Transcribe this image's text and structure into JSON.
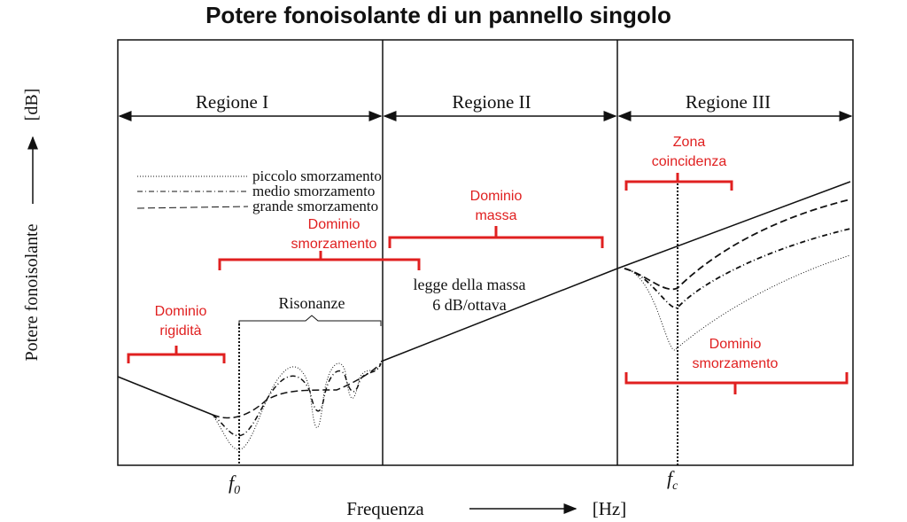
{
  "title": "Potere fonoisolante di un pannello singolo",
  "regions": [
    "Regione I",
    "Regione II",
    "Regione III"
  ],
  "legend": [
    "piccolo smorzamento",
    "medio smorzamento",
    "grande smorzamento"
  ],
  "annotations": {
    "stiffness": [
      "Dominio",
      "rigidità"
    ],
    "damping_low": [
      "Dominio",
      "smorzamento"
    ],
    "mass": [
      "Dominio",
      "massa"
    ],
    "coincidence": [
      "Zona",
      "coincidenza"
    ],
    "damping_high": [
      "Dominio",
      "smorzamento"
    ],
    "resonances": "Risonanze",
    "mass_law": [
      "legge della massa",
      "6 dB/ottava"
    ]
  },
  "axes": {
    "y_label": "Potere fonoisolante",
    "y_unit": "[dB]",
    "x_label": "Frequenza",
    "x_unit": "[Hz]",
    "f0": {
      "base": "f",
      "sub": "0"
    },
    "fc": {
      "base": "f",
      "sub": "c"
    }
  }
}
